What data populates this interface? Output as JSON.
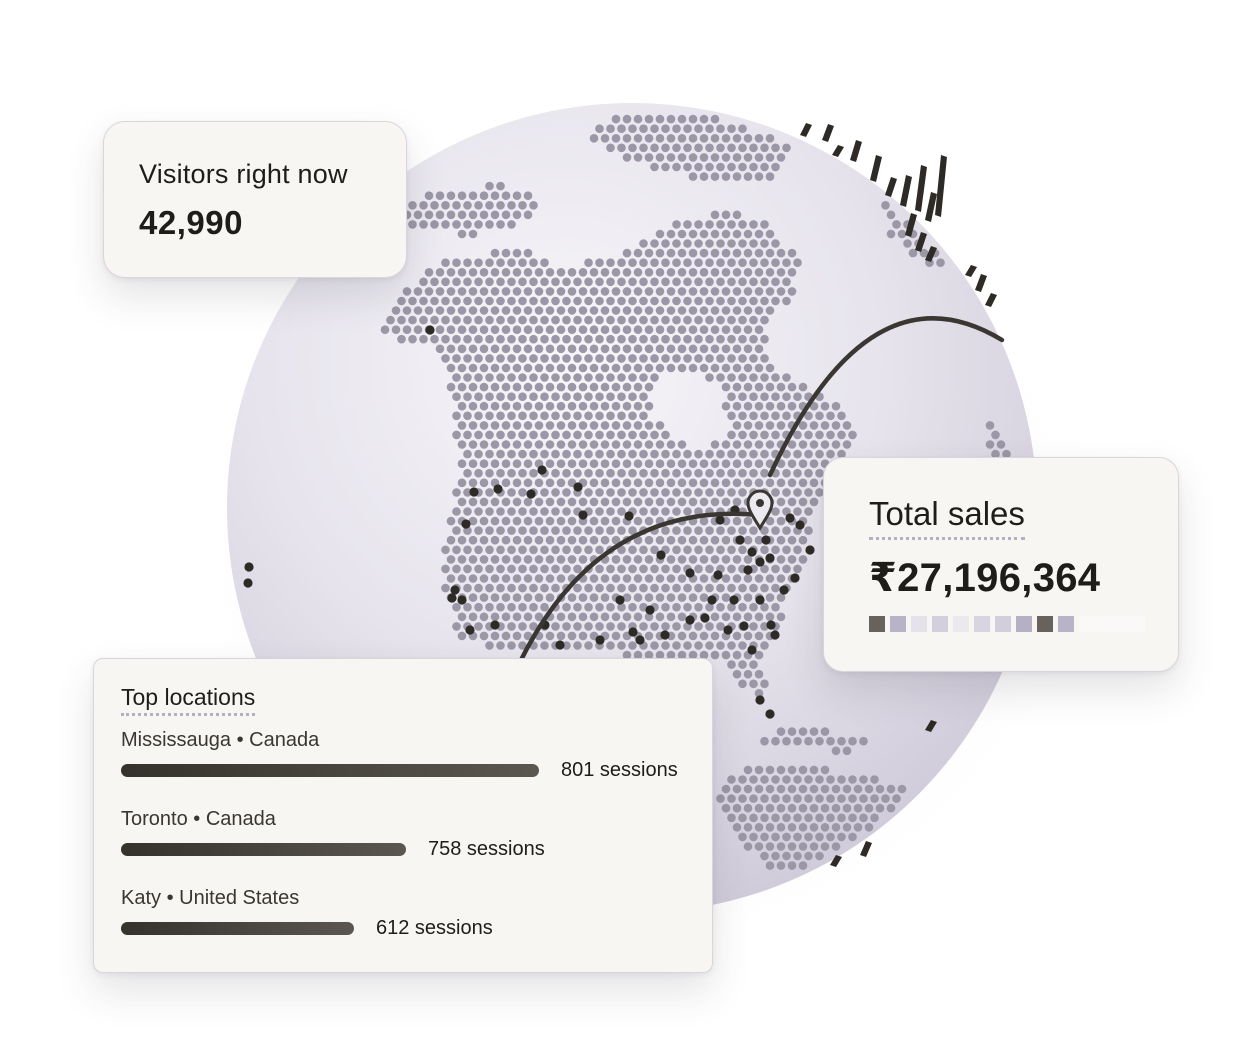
{
  "visitors": {
    "label": "Visitors right now",
    "value": "42,990"
  },
  "sales": {
    "label": "Total sales",
    "value": "₹27,196,364",
    "swatch_colors": [
      "#67625c",
      "#b8b3c6",
      "#e6e2ec",
      "#d4cfdd",
      "#ebe8ee",
      "#d8d4e0",
      "#d2cedb",
      "#b5b0c4",
      "#67625c",
      "#b8b3c6"
    ],
    "swatch_tail_color": "#faf9f7"
  },
  "locations": {
    "title": "Top locations",
    "items": [
      {
        "name": "Mississauga • Canada",
        "sessions": "801 sessions",
        "count": 801
      },
      {
        "name": "Toronto • Canada",
        "sessions": "758 sessions",
        "count": 758
      },
      {
        "name": "Katy • United States",
        "sessions": "612 sessions",
        "count": 612
      }
    ]
  },
  "globe": {
    "sphere_color": "#e2dfe8",
    "land_color": "#9b97a6",
    "hotspot_color": "#2e2b26",
    "arc_color": "#3a3631",
    "pin_icon": "map-pin-icon"
  }
}
